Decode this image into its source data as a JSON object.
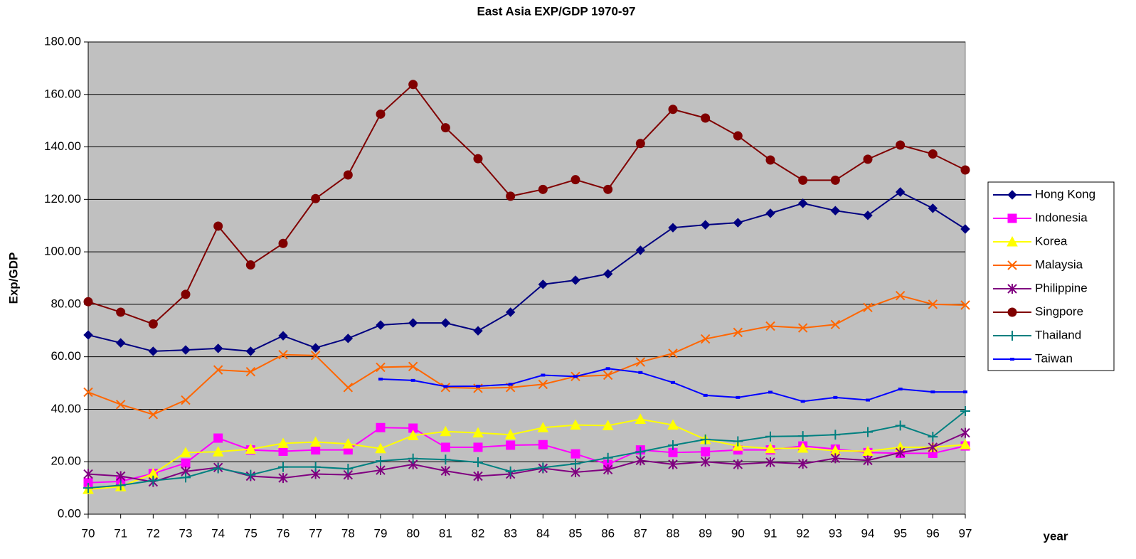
{
  "chart_data": {
    "type": "line",
    "title": "East Asia EXP/GDP 1970-97",
    "y_label": "Exp/GDP",
    "x_label": "year",
    "categories": [
      "70",
      "71",
      "72",
      "73",
      "74",
      "75",
      "76",
      "77",
      "78",
      "79",
      "80",
      "81",
      "82",
      "83",
      "84",
      "85",
      "86",
      "87",
      "88",
      "89",
      "90",
      "91",
      "92",
      "93",
      "94",
      "95",
      "96",
      "97"
    ],
    "ylim": [
      0,
      180
    ],
    "yticks": [
      {
        "value": 0,
        "label": "0.00"
      },
      {
        "value": 20,
        "label": "20.00"
      },
      {
        "value": 40,
        "label": "40.00"
      },
      {
        "value": 60,
        "label": "60.00"
      },
      {
        "value": 80,
        "label": "80.00"
      },
      {
        "value": 100,
        "label": "100.00"
      },
      {
        "value": 120,
        "label": "120.00"
      },
      {
        "value": 140,
        "label": "140.00"
      },
      {
        "value": 160,
        "label": "160.00"
      },
      {
        "value": 180,
        "label": "180.00"
      }
    ],
    "grid": true,
    "legend": "right",
    "series": [
      {
        "name": "Hong Kong",
        "color": "#000080",
        "marker": "diamond",
        "values": [
          68.3,
          65.3,
          62.1,
          62.6,
          63.2,
          62.1,
          68,
          63.4,
          67,
          72.1,
          72.9,
          72.9,
          69.9,
          77,
          87.6,
          89.2,
          91.6,
          100.6,
          109.2,
          110.3,
          111.1,
          114.7,
          118.5,
          115.7,
          113.9,
          122.8,
          116.6,
          108.7
        ]
      },
      {
        "name": "Indonesia",
        "color": "#ff00ff",
        "marker": "square",
        "values": [
          12,
          12.5,
          15.5,
          19.5,
          29,
          24.5,
          24,
          24.5,
          24.5,
          33,
          32.8,
          25.5,
          25.5,
          26.3,
          26.5,
          23,
          19,
          24.5,
          23.5,
          23.8,
          24.5,
          24.5,
          26,
          24.8,
          23.5,
          23.2,
          23.2,
          26
        ]
      },
      {
        "name": "Korea",
        "color": "#ffff00",
        "marker": "triangle",
        "values": [
          9.5,
          10.5,
          15.5,
          23.5,
          23.8,
          24.8,
          27,
          27.5,
          26.8,
          25,
          30,
          31.5,
          31,
          30.3,
          33,
          34,
          33.8,
          36.2,
          34,
          28.5,
          26,
          25,
          25.2,
          24.2,
          24,
          25.5,
          25.5,
          26.5
        ]
      },
      {
        "name": "Malaysia",
        "color": "#ff6600",
        "marker": "x",
        "values": [
          46.5,
          41.8,
          38,
          43.5,
          55,
          54.3,
          60.8,
          60.5,
          48.3,
          56,
          56.3,
          48.3,
          48,
          48.3,
          49.5,
          52.5,
          53,
          58,
          61.3,
          66.8,
          69.3,
          71.7,
          71,
          72.3,
          78.8,
          83.3,
          80,
          79.7
        ]
      },
      {
        "name": "Philippine",
        "color": "#800080",
        "marker": "star",
        "values": [
          15.3,
          14.5,
          12.3,
          16.3,
          17.8,
          14.5,
          13.8,
          15.3,
          15,
          16.8,
          19,
          16.5,
          14.5,
          15.3,
          17.5,
          16,
          17,
          20.5,
          19,
          20,
          19,
          19.8,
          19.2,
          21.3,
          20.5,
          23.5,
          25.5,
          31
        ]
      },
      {
        "name": "Singpore",
        "color": "#800000",
        "marker": "circle",
        "values": [
          81,
          77,
          72.5,
          83.8,
          109.8,
          95,
          103.2,
          120.3,
          129.3,
          152.5,
          163.8,
          147.3,
          135.5,
          121.2,
          123.8,
          127.5,
          123.8,
          141.3,
          154.3,
          151,
          144.2,
          135,
          127.3,
          127.3,
          135.3,
          140.7,
          137.3,
          131.2
        ]
      },
      {
        "name": "Thailand",
        "color": "#008080",
        "marker": "plus",
        "values": [
          10,
          11,
          12.8,
          14,
          17.5,
          15,
          18,
          18,
          17.3,
          20.3,
          21.2,
          20.8,
          19.8,
          16.3,
          17.8,
          19.2,
          21.5,
          23.8,
          26.3,
          28.5,
          27.8,
          29.6,
          29.8,
          30.3,
          31.3,
          33.8,
          29.5,
          39.3
        ]
      },
      {
        "name": "Taiwan",
        "color": "#0000ff",
        "marker": "dash",
        "values": [
          null,
          null,
          null,
          null,
          null,
          null,
          null,
          null,
          null,
          51.5,
          51,
          48.7,
          48.8,
          49.5,
          53,
          52.5,
          55.5,
          54,
          50.2,
          45.3,
          44.5,
          46.5,
          43,
          44.5,
          43.5,
          47.7,
          46.6,
          46.6
        ]
      }
    ]
  }
}
